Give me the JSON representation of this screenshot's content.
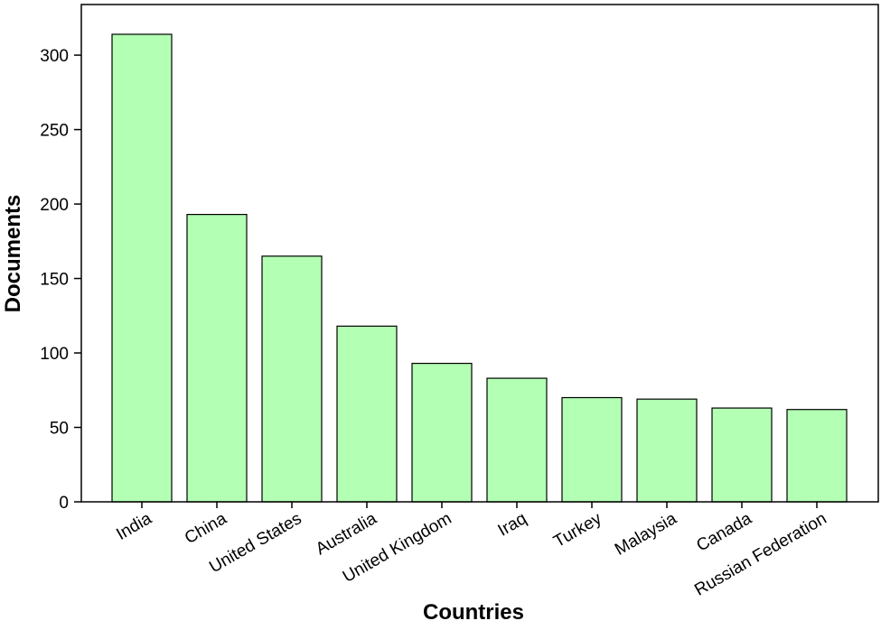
{
  "chart_data": {
    "type": "bar",
    "x_label": "Countries",
    "y_label": "Documents",
    "categories": [
      "India",
      "China",
      "United States",
      "Australia",
      "United Kingdom",
      "Iraq",
      "Turkey",
      "Malaysia",
      "Canada",
      "Russian Federation"
    ],
    "values": [
      314,
      193,
      165,
      118,
      93,
      83,
      70,
      69,
      63,
      62
    ],
    "color": "#b3ffb3",
    "ylim": [
      0,
      334
    ],
    "yticks": [
      0,
      50,
      100,
      150,
      200,
      250,
      300
    ],
    "grid": false
  }
}
